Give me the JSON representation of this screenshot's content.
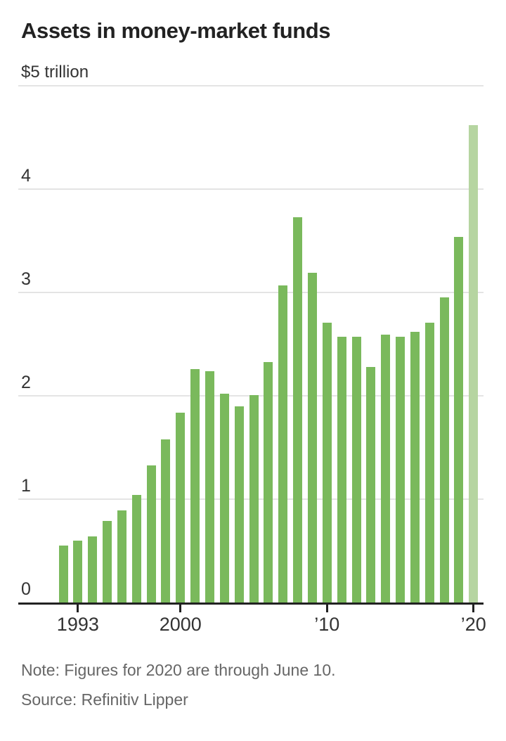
{
  "title": "Assets in money-market funds",
  "note": "Note: Figures for 2020 are through June 10.",
  "source": "Source: Refinitiv Lipper",
  "chart_data": {
    "type": "bar",
    "title": "Assets in money-market funds",
    "unit_label": "$5 trillion",
    "categories": [
      1992,
      1993,
      1994,
      1995,
      1996,
      1997,
      1998,
      1999,
      2000,
      2001,
      2002,
      2003,
      2004,
      2005,
      2006,
      2007,
      2008,
      2009,
      2010,
      2011,
      2012,
      2013,
      2014,
      2015,
      2016,
      2017,
      2018,
      2019,
      2020
    ],
    "values": [
      0.55,
      0.6,
      0.64,
      0.79,
      0.89,
      1.04,
      1.33,
      1.58,
      1.84,
      2.26,
      2.24,
      2.02,
      1.9,
      2.01,
      2.33,
      3.07,
      3.73,
      3.19,
      2.71,
      2.57,
      2.57,
      2.28,
      2.59,
      2.57,
      2.62,
      2.71,
      2.95,
      3.54,
      4.62
    ],
    "ylim": [
      0,
      5
    ],
    "ylabel": "",
    "xlabel": "",
    "grid": true,
    "legend": "none",
    "highlight_year": 2020,
    "y_ticks": [
      {
        "value": 5,
        "label": "$5 trillion"
      },
      {
        "value": 4,
        "label": "4"
      },
      {
        "value": 3,
        "label": "3"
      },
      {
        "value": 2,
        "label": "2"
      },
      {
        "value": 1,
        "label": "1"
      },
      {
        "value": 0,
        "label": "0"
      }
    ],
    "x_ticks": [
      {
        "year": 1993,
        "label": "1993"
      },
      {
        "year": 2000,
        "label": "2000"
      },
      {
        "year": 2010,
        "label": "’10"
      },
      {
        "year": 2020,
        "label": "’20"
      }
    ],
    "colors": {
      "bar": "#7ab95c",
      "bar_highlight": "#b6d5a1",
      "gridline": "#e4e4e4",
      "axis": "#222222",
      "title_text": "#222222",
      "tick_text": "#333333",
      "note_text": "#666666"
    }
  }
}
